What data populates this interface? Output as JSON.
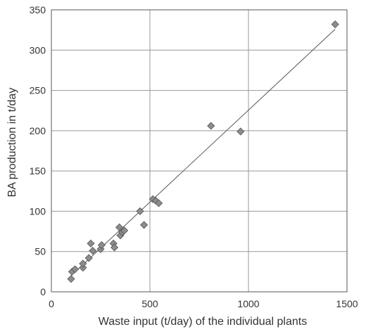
{
  "chart_data": {
    "type": "scatter",
    "title": "",
    "xlabel": "Waste input (t/day) of the individual plants",
    "ylabel": "BA production in t/day",
    "xlim": [
      0,
      1500
    ],
    "ylim": [
      0,
      350
    ],
    "x_ticks": [
      0,
      500,
      1000,
      1500
    ],
    "y_ticks": [
      0,
      50,
      100,
      150,
      200,
      250,
      300,
      350
    ],
    "grid": "on",
    "legend": "none",
    "marker": "diamond",
    "colors": {
      "marker": "#8c8c8c",
      "marker_edge": "#555555",
      "grid": "#999999",
      "frame": "#555555",
      "trend": "#555555"
    },
    "points": [
      {
        "x": 100,
        "y": 16
      },
      {
        "x": 105,
        "y": 25
      },
      {
        "x": 120,
        "y": 28
      },
      {
        "x": 160,
        "y": 30
      },
      {
        "x": 160,
        "y": 35
      },
      {
        "x": 190,
        "y": 42
      },
      {
        "x": 200,
        "y": 60
      },
      {
        "x": 210,
        "y": 51
      },
      {
        "x": 250,
        "y": 53
      },
      {
        "x": 255,
        "y": 58
      },
      {
        "x": 315,
        "y": 60
      },
      {
        "x": 320,
        "y": 55
      },
      {
        "x": 345,
        "y": 80
      },
      {
        "x": 350,
        "y": 70
      },
      {
        "x": 360,
        "y": 74
      },
      {
        "x": 370,
        "y": 76
      },
      {
        "x": 450,
        "y": 100
      },
      {
        "x": 470,
        "y": 83
      },
      {
        "x": 515,
        "y": 115
      },
      {
        "x": 530,
        "y": 113
      },
      {
        "x": 545,
        "y": 110
      },
      {
        "x": 810,
        "y": 206
      },
      {
        "x": 960,
        "y": 199
      },
      {
        "x": 1440,
        "y": 332
      }
    ],
    "trendline": [
      {
        "x": 100,
        "y": 20
      },
      {
        "x": 1440,
        "y": 326
      }
    ]
  }
}
